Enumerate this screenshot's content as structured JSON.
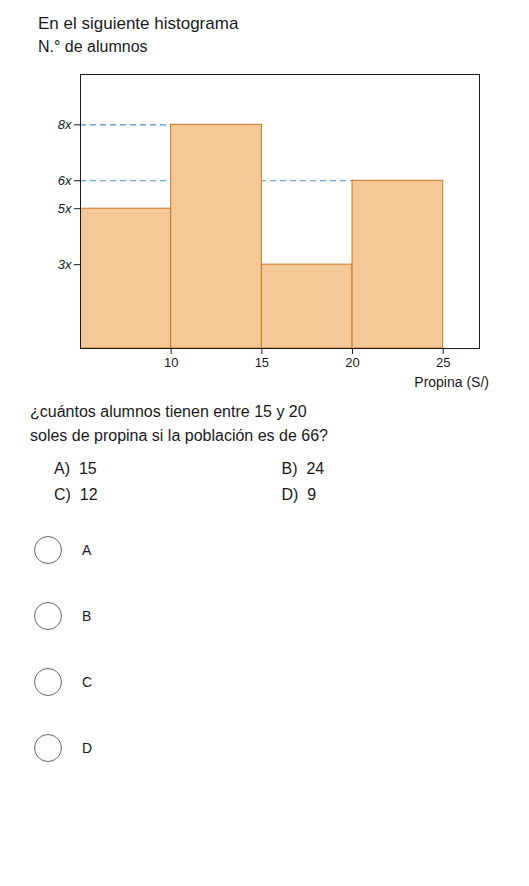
{
  "chart_data": {
    "type": "histogram",
    "title": "En el siguiente histograma",
    "ylabel": "N.° de alumnos",
    "xlabel": "Propina (S/)",
    "bins": [
      5,
      10,
      15,
      20,
      25
    ],
    "values": [
      5,
      8,
      3,
      6
    ],
    "color": "#F5C898",
    "edge_color": "#C87820",
    "xlim": [
      5,
      27
    ],
    "xticks": [
      10,
      15,
      20,
      25
    ],
    "ylim": [
      0,
      9.8
    ],
    "yticks": [
      {
        "value": 3,
        "label": "3x"
      },
      {
        "value": 5,
        "label": "5x"
      },
      {
        "value": 6,
        "label": "6x"
      },
      {
        "value": 8,
        "label": "8x"
      }
    ],
    "grid": false,
    "dashed_lines": {
      "color": "#4A90C4",
      "lines": [
        {
          "y": 8,
          "x_start": 5,
          "x_end": 15
        },
        {
          "y": 6,
          "x_start": 5,
          "x_end": 25
        },
        {
          "y": 3,
          "x_start": 5,
          "x_end": 20
        }
      ]
    },
    "question": "¿cuántos alumnos tienen entre 15 y 20\nsoles de propina si la población es de 66?",
    "options": [
      "A)  15",
      "B)  24",
      "C)  12",
      "D)  9"
    ],
    "radio_labels": [
      "A",
      "B",
      "C",
      "D"
    ]
  }
}
